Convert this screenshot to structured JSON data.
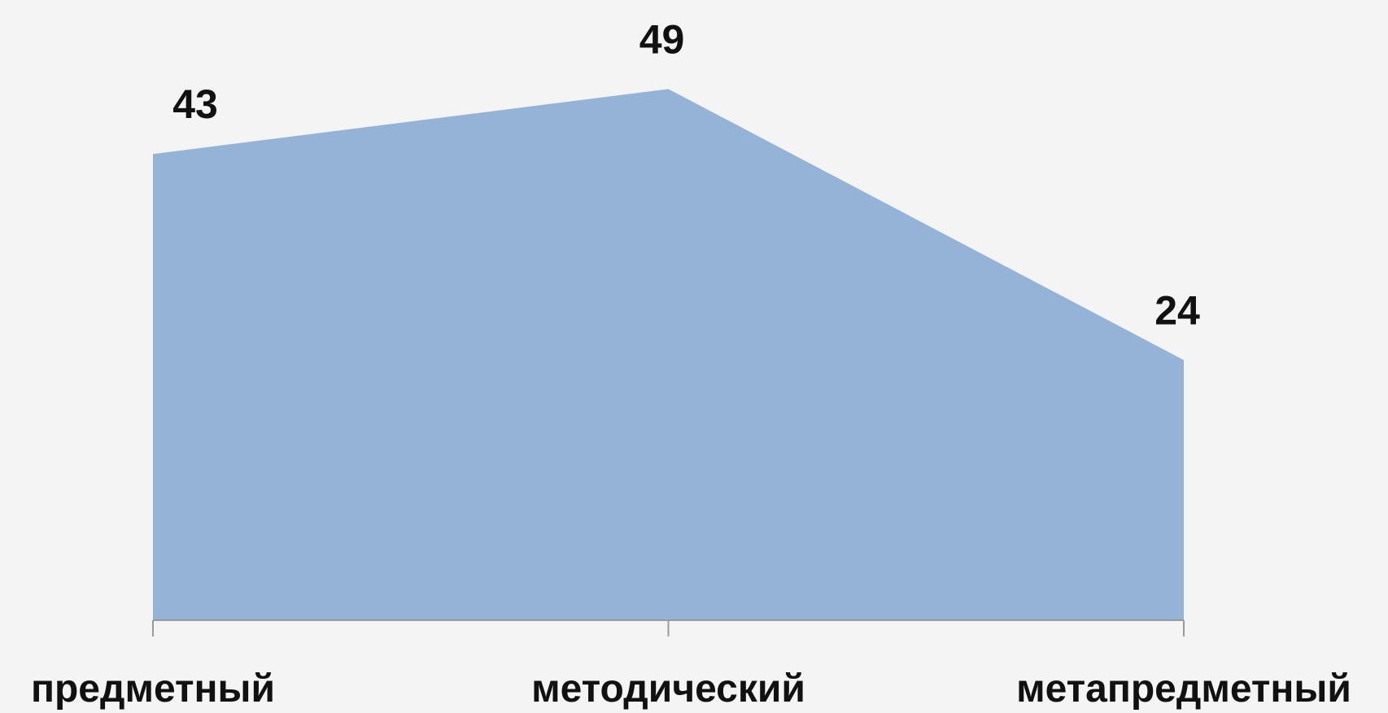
{
  "chart_data": {
    "type": "area",
    "categories": [
      "предметный",
      "методический",
      "метапредметный"
    ],
    "values": [
      43,
      49,
      24
    ],
    "color": "#95b3d7",
    "ylim": [
      0,
      50
    ]
  }
}
